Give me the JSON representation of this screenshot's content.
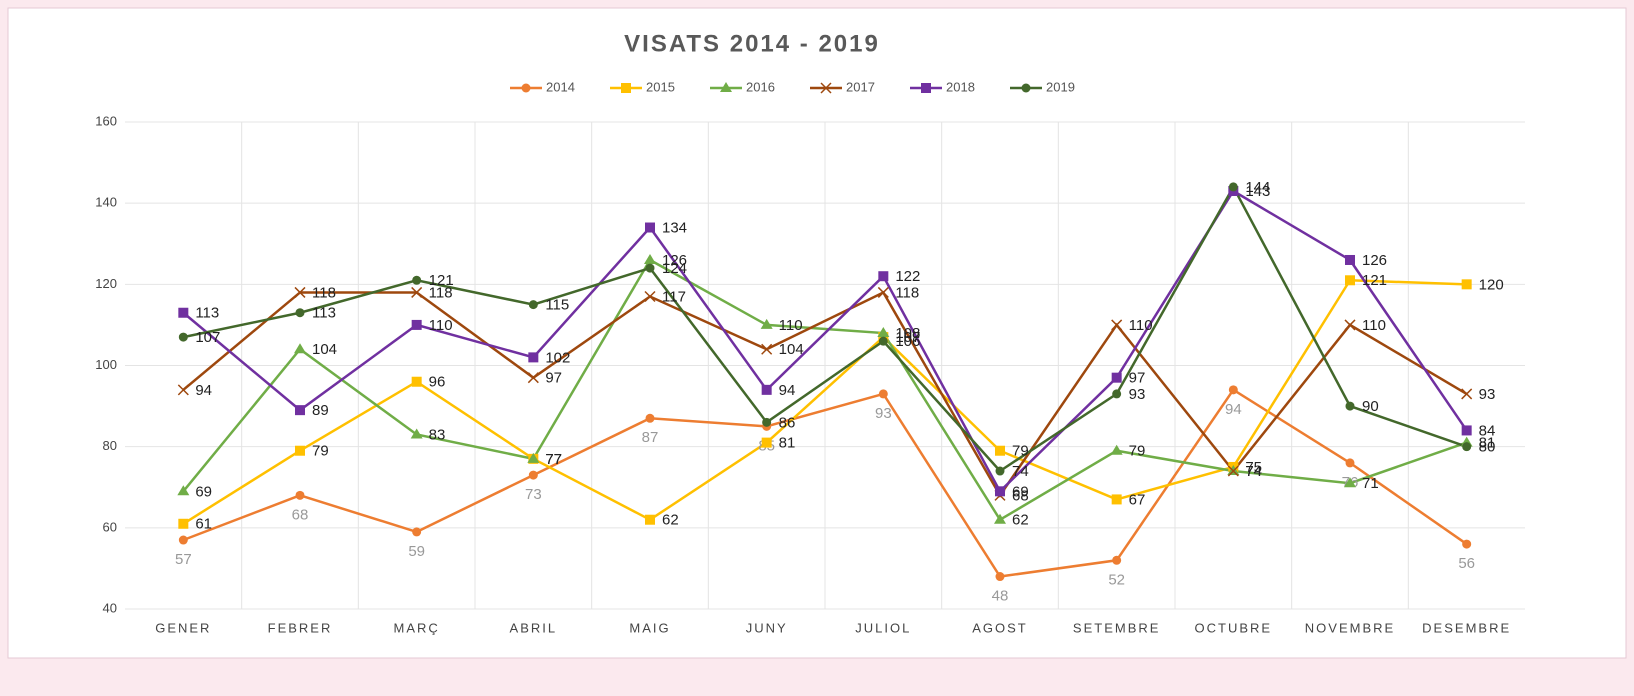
{
  "chart_data": {
    "type": "line",
    "title": "VISATS 2014 - 2019",
    "categories": [
      "GENER",
      "FEBRER",
      "MARÇ",
      "ABRIL",
      "MAIG",
      "JUNY",
      "JULIOL",
      "AGOST",
      "SETEMBRE",
      "OCTUBRE",
      "NOVEMBRE",
      "DESEMBRE"
    ],
    "ylim": [
      40,
      160
    ],
    "yticks": [
      40,
      60,
      80,
      100,
      120,
      140,
      160
    ],
    "grid": true,
    "legend": "top",
    "series": [
      {
        "name": "2014",
        "color": "#ed7d31",
        "marker": "circle",
        "label_position": "below",
        "values": [
          57,
          68,
          59,
          73,
          87,
          85,
          93,
          48,
          52,
          94,
          76,
          56
        ]
      },
      {
        "name": "2015",
        "color": "#ffc000",
        "marker": "square",
        "label_position": "right",
        "values": [
          61,
          79,
          96,
          77,
          62,
          81,
          107,
          79,
          67,
          75,
          121,
          120
        ]
      },
      {
        "name": "2016",
        "color": "#70ad47",
        "marker": "triangle",
        "label_position": "right",
        "values": [
          69,
          104,
          83,
          77,
          126,
          110,
          108,
          62,
          79,
          74,
          71,
          81
        ]
      },
      {
        "name": "2017",
        "color": "#9e480e",
        "marker": "x",
        "label_position": "right",
        "values": [
          94,
          118,
          118,
          97,
          117,
          104,
          118,
          68,
          110,
          74,
          110,
          93
        ]
      },
      {
        "name": "2018",
        "color": "#7030a0",
        "marker": "square",
        "label_position": "right",
        "values": [
          113,
          89,
          110,
          102,
          134,
          94,
          122,
          69,
          97,
          143,
          126,
          84
        ]
      },
      {
        "name": "2019",
        "color": "#43682b",
        "marker": "circle",
        "label_position": "right",
        "values": [
          107,
          113,
          121,
          115,
          124,
          86,
          106,
          74,
          93,
          144,
          90,
          80
        ]
      }
    ]
  }
}
